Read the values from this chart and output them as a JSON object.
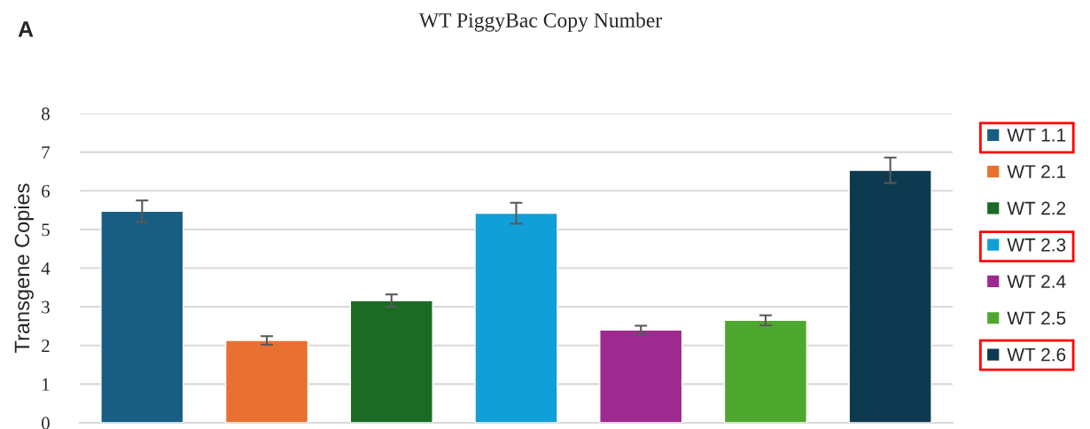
{
  "chart_data": {
    "type": "bar",
    "title": "WT PiggyBac Copy Number",
    "ylabel": "Transgene Copies",
    "annotations": [
      "A"
    ],
    "categories": [
      null,
      null,
      null,
      null,
      null,
      null,
      null
    ],
    "series": [
      {
        "name": "WT 1.1",
        "color": "#175e82",
        "values": [
          5.47,
          null,
          null,
          null,
          null,
          null,
          null
        ],
        "errors": [
          0.28,
          null,
          null,
          null,
          null,
          null,
          null
        ]
      },
      {
        "name": "WT 2.1",
        "color": "#e87131",
        "values": [
          null,
          2.13,
          null,
          null,
          null,
          null,
          null
        ],
        "errors": [
          null,
          0.11,
          null,
          null,
          null,
          null,
          null
        ]
      },
      {
        "name": "WT 2.2",
        "color": "#1b6b24",
        "values": [
          null,
          null,
          3.16,
          null,
          null,
          null,
          null
        ],
        "errors": [
          null,
          null,
          0.16,
          null,
          null,
          null,
          null
        ]
      },
      {
        "name": "WT 2.3",
        "color": "#119fd8",
        "values": [
          null,
          null,
          null,
          5.42,
          null,
          null,
          null
        ],
        "errors": [
          null,
          null,
          null,
          0.27,
          null,
          null,
          null
        ]
      },
      {
        "name": "WT 2.4",
        "color": "#9e2a8f",
        "values": [
          null,
          null,
          null,
          null,
          2.4,
          null,
          null
        ],
        "errors": [
          null,
          null,
          null,
          null,
          0.11,
          null,
          null
        ]
      },
      {
        "name": "WT 2.5",
        "color": "#4ea72e",
        "values": [
          null,
          null,
          null,
          null,
          null,
          2.65,
          null
        ],
        "errors": [
          null,
          null,
          null,
          null,
          null,
          0.13,
          null
        ]
      },
      {
        "name": "WT 2.6",
        "color": "#0e3a51",
        "values": [
          null,
          null,
          null,
          null,
          null,
          null,
          6.53
        ],
        "errors": [
          null,
          null,
          null,
          null,
          null,
          null,
          0.33
        ]
      }
    ],
    "ylim": [
      0,
      8
    ],
    "yticks": [
      0,
      1,
      2,
      3,
      4,
      5,
      6,
      7,
      8
    ],
    "grid": "y",
    "legend": "right"
  }
}
